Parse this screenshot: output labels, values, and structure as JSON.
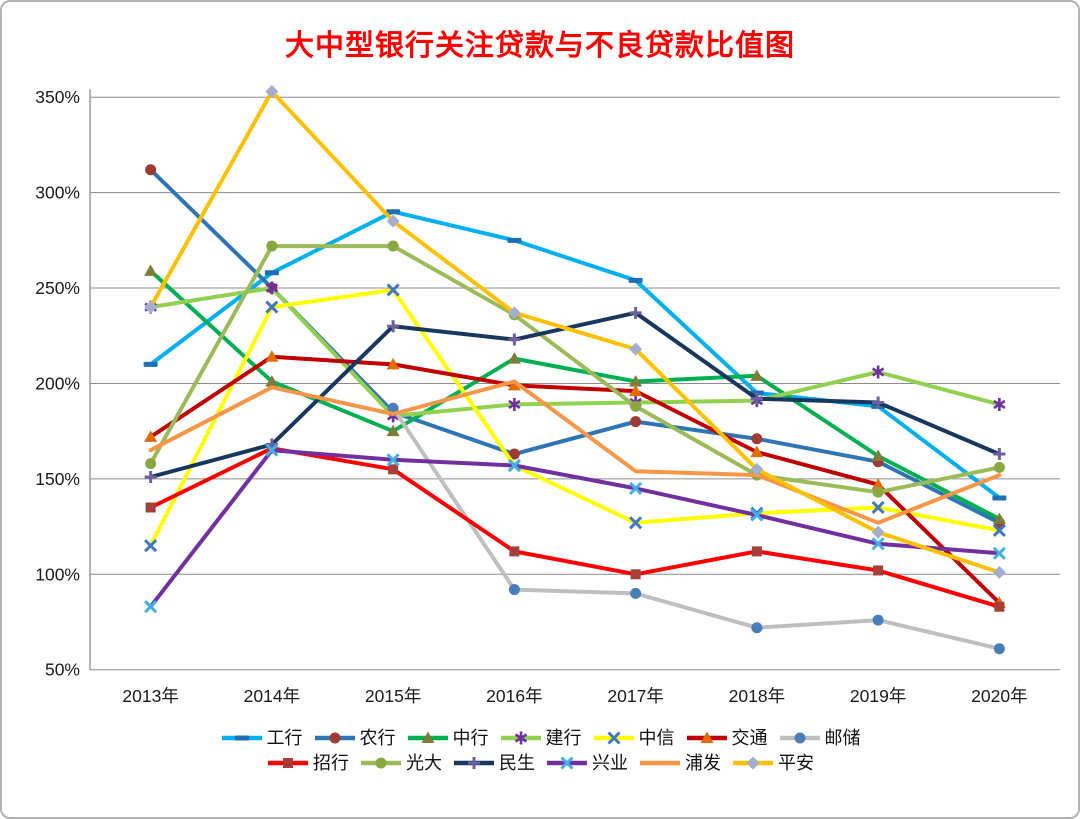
{
  "title": {
    "text": "大中型银行关注贷款与不良贷款比值图",
    "color": "#ff0000"
  },
  "chart_data": {
    "type": "line",
    "title": "大中型银行关注贷款与不良贷款比值图",
    "categories": [
      "2013年",
      "2014年",
      "2015年",
      "2016年",
      "2017年",
      "2018年",
      "2019年",
      "2020年"
    ],
    "xlabel": "",
    "ylabel": "",
    "y_axis": {
      "unit": "%",
      "min": 50,
      "max": 350,
      "tick_step": 50,
      "tick_values": [
        350,
        300,
        250,
        200,
        150,
        100,
        50
      ],
      "tick_labels": [
        "350%",
        "300%",
        "250%",
        "200%",
        "150%",
        "100%",
        "50%"
      ]
    },
    "grid": true,
    "gridline_color": "#8c8c8c",
    "axis_color": "#8c8c8c",
    "legend_position": "bottom",
    "legend_rows": [
      7,
      6
    ],
    "series": [
      {
        "name": "工行",
        "line_color": "#00b0f0",
        "marker": "dash",
        "marker_color": "#1f6fb5",
        "values": [
          210,
          258,
          290,
          275,
          254,
          195,
          188,
          140
        ]
      },
      {
        "name": "农行",
        "line_color": "#2e75b6",
        "marker": "circle",
        "marker_color": "#9e3b33",
        "values": [
          312,
          250,
          185,
          163,
          180,
          171,
          159,
          127
        ]
      },
      {
        "name": "中行",
        "line_color": "#00b050",
        "marker": "triangle",
        "marker_color": "#7d7d3b",
        "values": [
          259,
          201,
          175,
          213,
          201,
          204,
          162,
          129
        ]
      },
      {
        "name": "建行",
        "line_color": "#92d050",
        "marker": "asterisk",
        "marker_color": "#7030a0",
        "values": [
          240,
          250,
          183,
          189,
          190,
          191,
          206,
          189
        ]
      },
      {
        "name": "中信",
        "line_color": "#ffff00",
        "marker": "x",
        "marker_color": "#4177c1",
        "values": [
          115,
          240,
          249,
          157,
          127,
          132,
          135,
          123
        ]
      },
      {
        "name": "交通",
        "line_color": "#c00000",
        "marker": "triangle",
        "marker_color": "#e36c0a",
        "values": [
          172,
          214,
          210,
          199,
          196,
          164,
          147,
          85
        ]
      },
      {
        "name": "邮储",
        "line_color": "#bfbfbf",
        "marker": "circle",
        "marker_color": "#4a7ebb",
        "values": [
          null,
          null,
          187,
          92,
          90,
          72,
          76,
          61
        ]
      },
      {
        "name": "招行",
        "line_color": "#ff0000",
        "marker": "square",
        "marker_color": "#a63f39",
        "values": [
          135,
          166,
          155,
          112,
          100,
          112,
          102,
          83
        ]
      },
      {
        "name": "光大",
        "line_color": "#9bbb59",
        "marker": "circle",
        "marker_color": "#89a842",
        "values": [
          158,
          272,
          272,
          236,
          188,
          152,
          143,
          156
        ]
      },
      {
        "name": "民生",
        "line_color": "#17375e",
        "marker": "plus",
        "marker_color": "#6e5fa0",
        "values": [
          151,
          168,
          230,
          223,
          237,
          192,
          190,
          163
        ]
      },
      {
        "name": "兴业",
        "line_color": "#7030a0",
        "marker": "x",
        "marker_color": "#41b0e6",
        "values": [
          83,
          165,
          160,
          157,
          145,
          131,
          116,
          111
        ]
      },
      {
        "name": "浦发",
        "line_color": "#f79646",
        "marker": "none",
        "marker_color": "#f79646",
        "values": [
          165,
          198,
          184,
          201,
          154,
          152,
          127,
          152
        ]
      },
      {
        "name": "平安",
        "line_color": "#ffc000",
        "marker": "diamond",
        "marker_color": "#a3aecf",
        "values": [
          240,
          353,
          285,
          237,
          218,
          155,
          122,
          101
        ]
      }
    ]
  },
  "layout_note": ""
}
